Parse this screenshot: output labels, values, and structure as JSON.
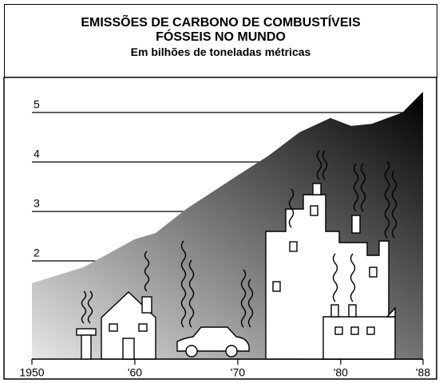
{
  "chart_data": {
    "type": "area",
    "title": "EMISSÕES DE CARBONO DE COMBUSTÍVEIS FÓSSEIS NO MUNDO",
    "subtitle": "Em bilhões de toneladas métricas",
    "x": [
      1950,
      1955,
      1960,
      1962,
      1965,
      1970,
      1973,
      1976,
      1979,
      1981,
      1983,
      1986,
      1988
    ],
    "values": [
      1.55,
      1.87,
      2.44,
      2.56,
      3.05,
      3.73,
      4.13,
      4.6,
      4.89,
      4.73,
      4.77,
      5.0,
      5.42
    ],
    "color": [
      "#e6e6e6",
      "#000000"
    ],
    "xlim": [
      1950,
      1988
    ],
    "xticks": [
      {
        "value": 1950,
        "label": "1950"
      },
      {
        "value": 1960,
        "label": "'60"
      },
      {
        "value": 1970,
        "label": "'70"
      },
      {
        "value": 1980,
        "label": "'80"
      },
      {
        "value": 1988,
        "label": "'88"
      }
    ],
    "ylim": [
      0,
      5.5
    ],
    "yticks": [
      2,
      3,
      4,
      5
    ],
    "grid": true
  }
}
